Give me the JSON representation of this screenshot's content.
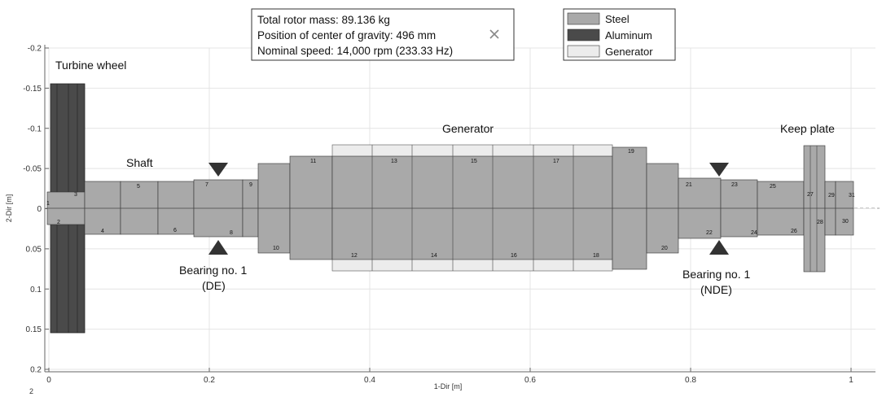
{
  "info_box": {
    "line1": "Total rotor mass: 89.136 kg",
    "line2": "Position of center of gravity: 496 mm",
    "line3": "Nominal speed: 14,000 rpm (233.33 Hz)"
  },
  "legend": [
    {
      "label": "Steel",
      "color": "#a9a9a9"
    },
    {
      "label": "Aluminum",
      "color": "#4a4a4a"
    },
    {
      "label": "Generator",
      "color": "#ececec"
    }
  ],
  "callouts": {
    "turbine": "Turbine wheel",
    "shaft": "Shaft",
    "generator": "Generator",
    "keep_plate": "Keep plate",
    "bearing_de_1": "Bearing no. 1",
    "bearing_de_2": "(DE)",
    "bearing_nde_1": "Bearing no. 1",
    "bearing_nde_2": "(NDE)"
  },
  "axes": {
    "xlabel": "1-Dir [m]",
    "ylabel": "2-Dir [m]",
    "xlim": [
      0,
      1.04
    ],
    "ylim": [
      -0.2,
      0.2
    ],
    "x_ticks": [
      "0",
      "0.2",
      "0.4",
      "0.6",
      "0.8",
      "1"
    ],
    "y_ticks": [
      "-0.2",
      "-0.15",
      "-0.1",
      "-0.05",
      "0",
      "0.05",
      "0.1",
      "0.15",
      "0.2"
    ],
    "corner_mark": "2"
  },
  "colors": {
    "steel": "#a9a9a9",
    "aluminum": "#4a4a4a",
    "generator": "#ececec"
  },
  "segment_numbers": [
    "1",
    "2",
    "3",
    "4",
    "5",
    "6",
    "7",
    "8",
    "9",
    "10",
    "11",
    "12",
    "13",
    "14",
    "15",
    "16",
    "17",
    "18",
    "19",
    "20",
    "21",
    "22",
    "23",
    "24",
    "25",
    "26",
    "27",
    "28",
    "29",
    "30",
    "31"
  ]
}
